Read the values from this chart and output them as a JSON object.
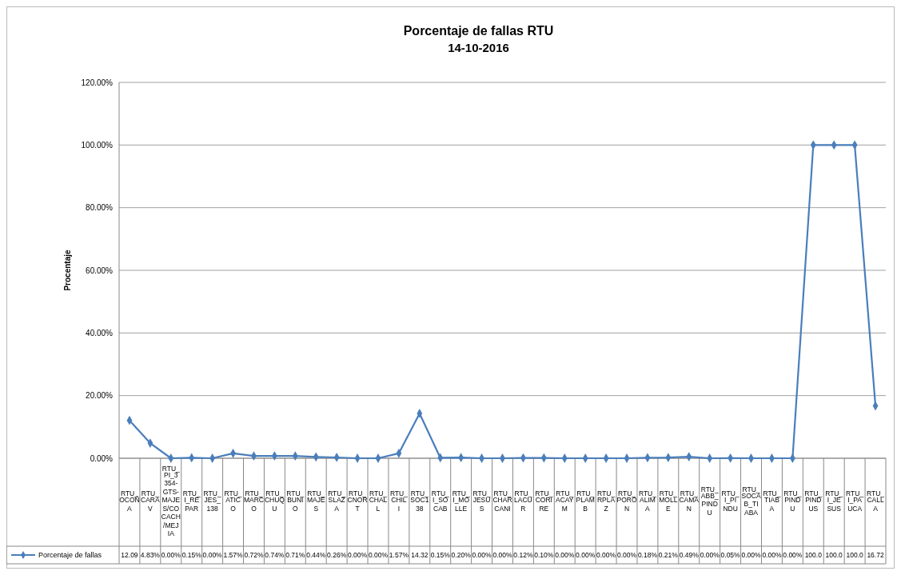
{
  "chart_data": {
    "type": "line",
    "title": "Porcentaje de fallas RTU",
    "subtitle": "14-10-2016",
    "ylabel": "Procentaje",
    "categories": [
      "RTU_OCOÑA",
      "RTU_CARAV",
      "RTU_PI_3354-GTS-MAJES/COCACH/MEJIA",
      "RTU_I_REPAR",
      "RTU_JES_138",
      "RTU_ATICO",
      "RTU_MARCO",
      "RTU_CHUQU",
      "RTU_BUNIO",
      "RTU_MAJES",
      "RTU_SLAZA",
      "RTU_CNORT",
      "RTU_CHALL",
      "RTU_CHILI",
      "RTU_SOC138",
      "RTU_I_SOCAB",
      "RTU_I_MOLLE",
      "RTU_JESUS",
      "RTU_CHARCANI",
      "RTU_LACUR",
      "RTU_CORIRE",
      "RTU_ACAYM",
      "RTU_PLAMB",
      "RTU_RPLAZ",
      "RTU_PORON",
      "RTU_ALIMA",
      "RTU_MOLLE",
      "RTU_CAMAN",
      "RTU_ABB_PINDU",
      "RTU_I_PINDU",
      "RTU_SOCAB_TIABA",
      "RTU_TIABA",
      "RTU_PINDU",
      "RTU_PINDUS",
      "RTU_I_JESUS",
      "RTU_I_PAUCA",
      "RTU_CALLA"
    ],
    "series": [
      {
        "name": "Porcentaje de fallas",
        "color": "#4a7ebb",
        "values": [
          12.09,
          4.83,
          0,
          0.15,
          0,
          1.57,
          0.72,
          0.74,
          0.71,
          0.44,
          0.26,
          0,
          0,
          1.57,
          14.32,
          0.15,
          0.2,
          0,
          0,
          0.12,
          0.1,
          0,
          0,
          0,
          0,
          0.18,
          0.21,
          0.49,
          0,
          0.05,
          0,
          0,
          0,
          100,
          100,
          100,
          16.72
        ],
        "value_labels": [
          "12.09",
          "4.83%",
          "0.00%",
          "0.15%",
          "0.00%",
          "1.57%",
          "0.72%",
          "0.74%",
          "0.71%",
          "0.44%",
          "0.26%",
          "0.00%",
          "0.00%",
          "1.57%",
          "14.32",
          "0.15%",
          "0.20%",
          "0.00%",
          "0.00%",
          "0.12%",
          "0.10%",
          "0.00%",
          "0.00%",
          "0.00%",
          "0.00%",
          "0.18%",
          "0.21%",
          "0.49%",
          "0.00%",
          "0.05%",
          "0.00%",
          "0.00%",
          "0.00%",
          "100.0",
          "100.0",
          "100.0",
          "16.72"
        ]
      }
    ],
    "ylim": [
      0,
      120
    ],
    "yticks": [
      {
        "value": 0,
        "label": "0.00%"
      },
      {
        "value": 20,
        "label": "20.00%"
      },
      {
        "value": 40,
        "label": "40.00%"
      },
      {
        "value": 60,
        "label": "60.00%"
      },
      {
        "value": 80,
        "label": "80.00%"
      },
      {
        "value": 100,
        "label": "100.00%"
      },
      {
        "value": 120,
        "label": "120.00%"
      }
    ],
    "grid": "y",
    "legend": "bottom",
    "marker": "diamond",
    "line_style": "solid"
  }
}
